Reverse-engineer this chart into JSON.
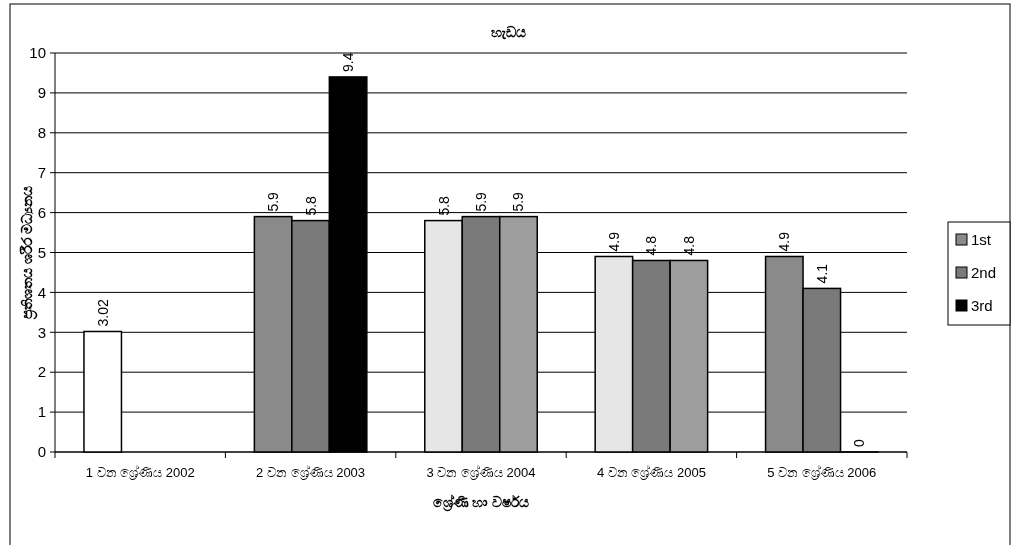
{
  "chart_data": {
    "type": "bar",
    "title": "හැඩය",
    "xlabel": "ශ්‍රේණි හා වර්ෂය",
    "ylabel": "ප්‍රතිශතය ශරීර මධ්‍යනය",
    "categories": [
      "1 වන ශ්‍රේණිය 2002",
      "2 වන ශ්‍රේණිය 2003",
      "3 වන ශ්‍රේණිය 2004",
      "4 වන ශ්‍රේණිය 2005",
      "5 වන ශ්‍රේණිය 2006"
    ],
    "series": [
      {
        "name": "1st",
        "color": "#8a8a8a",
        "colors": [
          "#ffffff",
          "#8a8a8a",
          "#e6e6e6",
          "#e6e6e6",
          "#8a8a8a"
        ],
        "values": [
          3.02,
          5.9,
          5.8,
          4.9,
          4.9
        ]
      },
      {
        "name": "2nd",
        "color": "#7a7a7a",
        "values": [
          null,
          5.8,
          5.9,
          4.8,
          4.1
        ]
      },
      {
        "name": "3rd",
        "color": "#000000",
        "colors": [
          null,
          "#000000",
          "#9e9e9e",
          "#9e9e9e",
          null
        ],
        "values": [
          null,
          9.4,
          5.9,
          4.8,
          0
        ]
      }
    ],
    "ylim": [
      0,
      10
    ],
    "yticks": [
      0,
      1,
      2,
      3,
      4,
      5,
      6,
      7,
      8,
      9,
      10
    ],
    "grid": "y",
    "legend": "right",
    "data_labels": true
  }
}
